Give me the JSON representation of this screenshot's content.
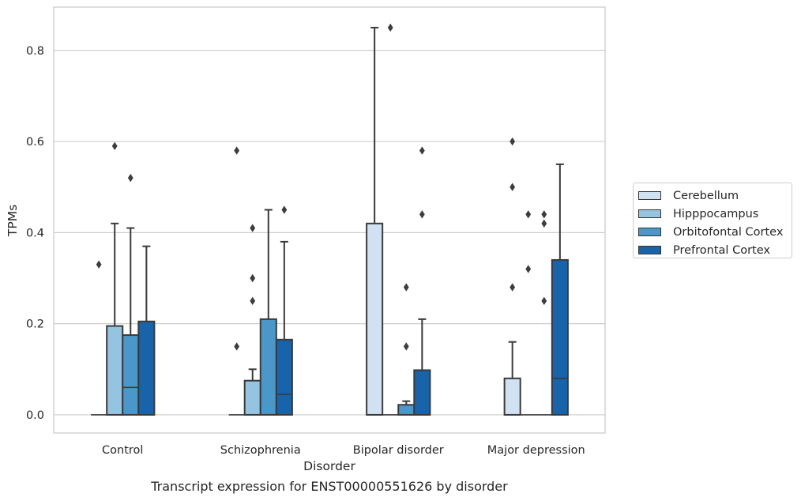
{
  "caption": "Transcript expression for ENST00000551626 by disorder",
  "chart_data": {
    "type": "box",
    "xlabel": "Disorder",
    "ylabel": "TPMs",
    "ylim": [
      -0.04,
      0.895
    ],
    "yticks": [
      0.0,
      0.2,
      0.4,
      0.6,
      0.8
    ],
    "ytick_labels": [
      "0.0",
      "0.2",
      "0.4",
      "0.6",
      "0.8"
    ],
    "grid": true,
    "legend_position": "right",
    "categories": [
      "Control",
      "Schizophrenia",
      "Bipolar disorder",
      "Major depression"
    ],
    "series": [
      {
        "name": "Cerebellum",
        "color": "#d0e1f2",
        "boxes": [
          {
            "q1": 0,
            "median": 0,
            "q3": 0,
            "whisker_low": 0,
            "whisker_high": 0,
            "outliers": [
              0.33
            ]
          },
          {
            "q1": 0,
            "median": 0,
            "q3": 0,
            "whisker_low": 0,
            "whisker_high": 0,
            "outliers": [
              0.15,
              0.58
            ]
          },
          {
            "q1": 0,
            "median": 0,
            "q3": 0.42,
            "whisker_low": 0,
            "whisker_high": 0.85,
            "outliers": []
          },
          {
            "q1": 0,
            "median": 0,
            "q3": 0.08,
            "whisker_low": 0,
            "whisker_high": 0.16,
            "outliers": [
              0.28,
              0.5,
              0.6
            ]
          }
        ]
      },
      {
        "name": "Hipppocampus",
        "color": "#94c4df",
        "boxes": [
          {
            "q1": 0,
            "median": 0,
            "q3": 0.195,
            "whisker_low": 0,
            "whisker_high": 0.42,
            "outliers": [
              0.59
            ]
          },
          {
            "q1": 0,
            "median": 0,
            "q3": 0.075,
            "whisker_low": 0,
            "whisker_high": 0.1,
            "outliers": [
              0.25,
              0.3,
              0.41
            ]
          },
          {
            "q1": 0,
            "median": 0,
            "q3": 0,
            "whisker_low": 0,
            "whisker_high": 0,
            "outliers": [
              0.85
            ]
          },
          {
            "q1": 0,
            "median": 0,
            "q3": 0,
            "whisker_low": 0,
            "whisker_high": 0,
            "outliers": [
              0.32,
              0.44
            ]
          }
        ]
      },
      {
        "name": "Orbitofontal Cortex",
        "color": "#4a98c9",
        "boxes": [
          {
            "q1": 0,
            "median": 0.06,
            "q3": 0.175,
            "whisker_low": 0,
            "whisker_high": 0.41,
            "outliers": [
              0.52
            ]
          },
          {
            "q1": 0,
            "median": 0,
            "q3": 0.21,
            "whisker_low": 0,
            "whisker_high": 0.45,
            "outliers": []
          },
          {
            "q1": 0,
            "median": 0,
            "q3": 0.022,
            "whisker_low": 0,
            "whisker_high": 0.03,
            "outliers": [
              0.15,
              0.28
            ]
          },
          {
            "q1": 0,
            "median": 0,
            "q3": 0,
            "whisker_low": 0,
            "whisker_high": 0,
            "outliers": [
              0.25,
              0.42,
              0.44
            ]
          }
        ]
      },
      {
        "name": "Prefrontal Cortex",
        "color": "#1764ab",
        "boxes": [
          {
            "q1": 0,
            "median": 0,
            "q3": 0.205,
            "whisker_low": 0,
            "whisker_high": 0.37,
            "outliers": []
          },
          {
            "q1": 0,
            "median": 0.045,
            "q3": 0.165,
            "whisker_low": 0,
            "whisker_high": 0.38,
            "outliers": [
              0.45
            ]
          },
          {
            "q1": 0,
            "median": 0,
            "q3": 0.098,
            "whisker_low": 0,
            "whisker_high": 0.21,
            "outliers": [
              0.44,
              0.58
            ]
          },
          {
            "q1": 0,
            "median": 0.08,
            "q3": 0.34,
            "whisker_low": 0,
            "whisker_high": 0.55,
            "outliers": []
          }
        ]
      }
    ]
  }
}
